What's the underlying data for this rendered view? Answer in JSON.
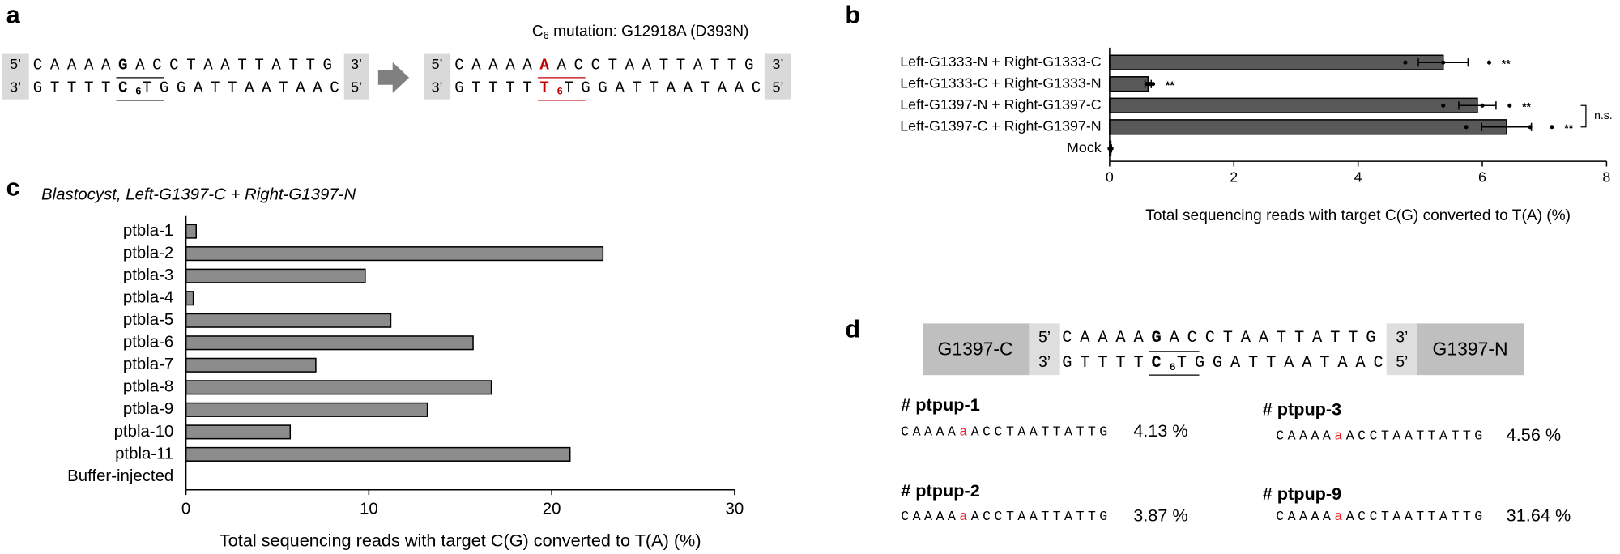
{
  "panel_labels": [
    "a",
    "b",
    "c",
    "d"
  ],
  "panel_a": {
    "title": [
      "C",
      "6",
      " mutation: G12918A (D393N)"
    ],
    "before": {
      "top_ends": [
        "5’",
        "3’"
      ],
      "bottom_ends": [
        "3’",
        "5’"
      ],
      "top": [
        "CAAAA",
        "G",
        "ACCTAATTATTG"
      ],
      "bottom": [
        "GTTTT",
        "C",
        "6",
        "TG",
        "GATTAATAAC"
      ]
    },
    "after": {
      "top_ends": [
        "5’",
        "3’"
      ],
      "bottom_ends": [
        "3’",
        "5’"
      ],
      "top": [
        "CAAAA",
        "A",
        "ACCTAATTATTG"
      ],
      "bottom": [
        "GTTTT",
        "T",
        "6",
        "TG",
        "GATTAATAAC"
      ]
    }
  },
  "chart_data": [
    {
      "type": "bar",
      "orientation": "horizontal",
      "categories": [
        "Left-G1333-N + Right-G1333-C",
        "Left-G1333-C + Right-G1333-N",
        "Left-G1397-N + Right-G1397-C",
        "Left-G1397-C + Right-G1397-N",
        "Mock"
      ],
      "values": [
        5.37,
        0.62,
        5.92,
        6.39,
        0.02
      ],
      "errors": [
        0.4,
        0.05,
        0.3,
        0.4,
        0.01
      ],
      "points": [
        [
          4.76,
          5.37,
          6.11
        ],
        [
          0.6,
          0.65,
          0.7
        ],
        [
          5.37,
          6.0,
          6.44
        ],
        [
          5.74,
          6.77,
          7.12
        ],
        [
          0,
          0.01,
          0.03
        ]
      ],
      "significance": [
        "**",
        "**",
        "**",
        "**",
        null
      ],
      "comparison_label": "n.s.",
      "color": "#595959",
      "xlim": [
        0,
        8
      ],
      "xticks": [
        0,
        2,
        4,
        6,
        8
      ],
      "xlabel": "Total sequencing reads with target C(G) converted to T(A) (%)"
    },
    {
      "type": "bar",
      "orientation": "horizontal",
      "title": "Blastocyst, Left-G1397-C + Right-G1397-N",
      "categories": [
        "ptbla-1",
        "ptbla-2",
        "ptbla-3",
        "ptbla-4",
        "ptbla-5",
        "ptbla-6",
        "ptbla-7",
        "ptbla-8",
        "ptbla-9",
        "ptbla-10",
        "ptbla-11",
        "Buffer-injected"
      ],
      "values": [
        0.56,
        22.8,
        9.8,
        0.4,
        11.2,
        15.7,
        7.1,
        16.7,
        13.2,
        5.7,
        21.0,
        0
      ],
      "color": "#8c8c8c",
      "xlim": [
        0,
        30
      ],
      "xticks": [
        0,
        10,
        20,
        30
      ],
      "xlabel": "Total sequencing reads with target C(G) converted to T(A) (%)"
    }
  ],
  "panel_d": {
    "left_label": "G1397-C",
    "right_label": "G1397-N",
    "sequence": {
      "top_ends": [
        "5’",
        "3’"
      ],
      "bottom_ends": [
        "3’",
        "5’"
      ],
      "top": [
        "CAAAA",
        "G",
        "ACCTAATTATTG"
      ],
      "bottom": [
        "GTTTT",
        "C",
        "6",
        "TG",
        "GATTAATAAC"
      ]
    },
    "results": [
      {
        "name": "# ptpup-1",
        "sequence": [
          "CAAAA",
          "a",
          "ACCTAATTATTG"
        ],
        "percent": "4.13 %"
      },
      {
        "name": "# ptpup-2",
        "sequence": [
          "CAAAA",
          "a",
          "ACCTAATTATTG"
        ],
        "percent": "3.87 %"
      },
      {
        "name": "# ptpup-3",
        "sequence": [
          "CAAAA",
          "a",
          "ACCTAATTATTG"
        ],
        "percent": "4.56 %"
      },
      {
        "name": "# ptpup-9",
        "sequence": [
          "CAAAA",
          "a",
          "ACCTAATTATTG"
        ],
        "percent": "31.64 %"
      }
    ]
  }
}
